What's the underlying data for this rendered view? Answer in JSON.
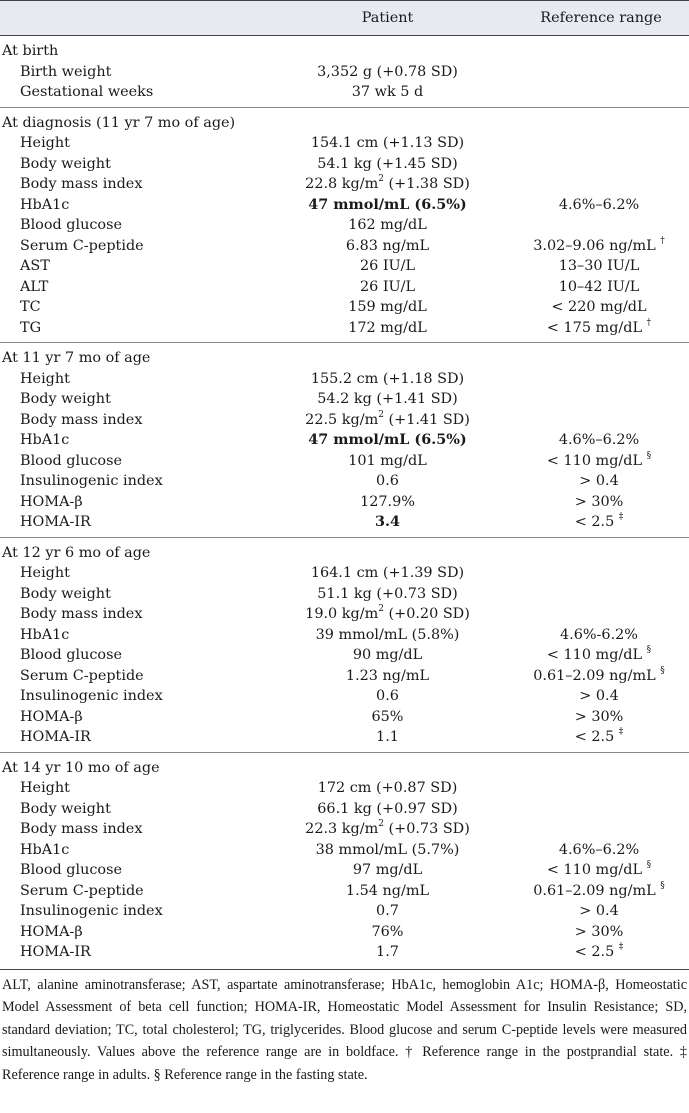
{
  "header": {
    "col1": "",
    "col2": "Patient",
    "col3": "Reference range"
  },
  "sections": [
    {
      "title": "At birth",
      "rows": [
        {
          "label": "Birth weight",
          "value": "3,352 g (+0.78 SD)",
          "ref": "",
          "bold": false
        },
        {
          "label": "Gestational weeks",
          "value": "37 wk 5 d",
          "ref": "",
          "bold": false
        }
      ]
    },
    {
      "title": "At diagnosis (11 yr 7 mo of age)",
      "rows": [
        {
          "label": "Height",
          "value": "154.1 cm (+1.13 SD)",
          "ref": "",
          "bold": false
        },
        {
          "label": "Body weight",
          "value": "54.1 kg (+1.45 SD)",
          "ref": "",
          "bold": false
        },
        {
          "label": "Body mass index",
          "value": "22.8 kg/m² (+1.38 SD)",
          "ref": "",
          "bold": false
        },
        {
          "label": "HbA1c",
          "value": "47 mmol/mL (6.5%)",
          "ref": "4.6%–6.2%",
          "bold": true
        },
        {
          "label": "Blood glucose",
          "value": "162 mg/dL",
          "ref": "",
          "bold": false
        },
        {
          "label": "Serum C-peptide",
          "value": "6.83 ng/mL",
          "ref": "3.02–9.06 ng/mL †",
          "bold": false
        },
        {
          "label": "AST",
          "value": "26 IU/L",
          "ref": "13–30 IU/L",
          "bold": false
        },
        {
          "label": "ALT",
          "value": "26 IU/L",
          "ref": "10–42 IU/L",
          "bold": false
        },
        {
          "label": "TC",
          "value": "159 mg/dL",
          "ref": "< 220 mg/dL",
          "bold": false
        },
        {
          "label": "TG",
          "value": "172 mg/dL",
          "ref": "< 175 mg/dL †",
          "bold": false
        }
      ]
    },
    {
      "title": "At 11 yr 7 mo of age",
      "rows": [
        {
          "label": "Height",
          "value": "155.2 cm (+1.18 SD)",
          "ref": "",
          "bold": false
        },
        {
          "label": "Body weight",
          "value": "54.2 kg (+1.41 SD)",
          "ref": "",
          "bold": false
        },
        {
          "label": "Body mass index",
          "value": "22.5 kg/m² (+1.41 SD)",
          "ref": "",
          "bold": false
        },
        {
          "label": "HbA1c",
          "value": "47 mmol/mL (6.5%)",
          "ref": "4.6%–6.2%",
          "bold": true
        },
        {
          "label": "Blood glucose",
          "value": "101 mg/dL",
          "ref": "< 110 mg/dL §",
          "bold": false
        },
        {
          "label": "Insulinogenic index",
          "value": "0.6",
          "ref": "> 0.4",
          "bold": false
        },
        {
          "label": "HOMA-β",
          "value": "127.9%",
          "ref": "> 30%",
          "bold": false
        },
        {
          "label": "HOMA-IR",
          "value": "3.4",
          "ref": "< 2.5 ‡",
          "bold": true
        }
      ]
    },
    {
      "title": "At 12 yr 6 mo of age",
      "rows": [
        {
          "label": "Height",
          "value": "164.1 cm (+1.39 SD)",
          "ref": "",
          "bold": false
        },
        {
          "label": "Body weight",
          "value": "51.1 kg (+0.73 SD)",
          "ref": "",
          "bold": false
        },
        {
          "label": "Body mass index",
          "value": "19.0 kg/m² (+0.20 SD)",
          "ref": "",
          "bold": false
        },
        {
          "label": "HbA1c",
          "value": "39 mmol/mL (5.8%)",
          "ref": "4.6%-6.2%",
          "bold": false
        },
        {
          "label": "Blood glucose",
          "value": "90 mg/dL",
          "ref": "< 110 mg/dL §",
          "bold": false
        },
        {
          "label": "Serum C-peptide",
          "value": "1.23 ng/mL",
          "ref": "0.61–2.09 ng/mL §",
          "bold": false
        },
        {
          "label": "Insulinogenic index",
          "value": "0.6",
          "ref": "> 0.4",
          "bold": false
        },
        {
          "label": "HOMA-β",
          "value": "65%",
          "ref": "> 30%",
          "bold": false
        },
        {
          "label": "HOMA-IR",
          "value": "1.1",
          "ref": "< 2.5 ‡",
          "bold": false
        }
      ]
    },
    {
      "title": "At 14 yr 10 mo of age",
      "rows": [
        {
          "label": "Height",
          "value": "172 cm (+0.87 SD)",
          "ref": "",
          "bold": false
        },
        {
          "label": "Body weight",
          "value": "66.1 kg (+0.97 SD)",
          "ref": "",
          "bold": false
        },
        {
          "label": "Body mass index",
          "value": "22.3 kg/m² (+0.73 SD)",
          "ref": "",
          "bold": false
        },
        {
          "label": "HbA1c",
          "value": "38 mmol/mL (5.7%)",
          "ref": "4.6%–6.2%",
          "bold": false
        },
        {
          "label": "Blood glucose",
          "value": "97 mg/dL",
          "ref": "< 110 mg/dL §",
          "bold": false
        },
        {
          "label": "Serum C-peptide",
          "value": "1.54 ng/mL",
          "ref": "0.61–2.09 ng/mL §",
          "bold": false
        },
        {
          "label": "Insulinogenic index",
          "value": "0.7",
          "ref": "> 0.4",
          "bold": false
        },
        {
          "label": "HOMA-β",
          "value": "76%",
          "ref": "> 30%",
          "bold": false
        },
        {
          "label": "HOMA-IR",
          "value": "1.7",
          "ref": "< 2.5 ‡",
          "bold": false
        }
      ]
    }
  ],
  "footnote": "ALT, alanine aminotransferase; AST, aspartate aminotransferase; HbA1c, hemoglobin A1c; HOMA-β, Homeostatic Model Assessment of beta cell function; HOMA-IR, Homeostatic Model Assessment for Insulin Resistance; SD, standard deviation; TC, total cholesterol; TG, triglycerides. Blood glucose and serum C-peptide levels were measured simultaneously. Values above the reference range are in boldface. † Reference range in the postprandial state. ‡ Reference range in adults. § Reference range in the fasting state."
}
